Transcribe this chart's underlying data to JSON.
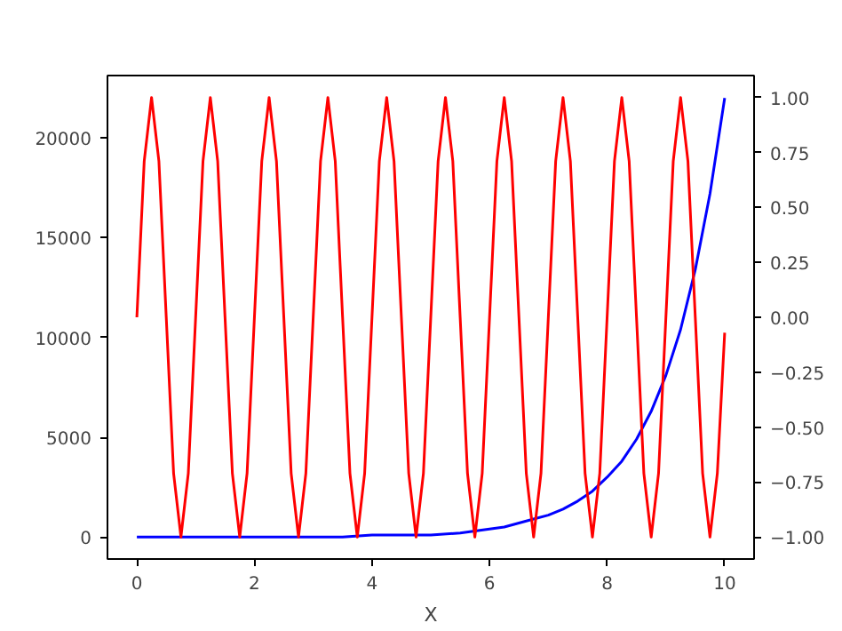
{
  "chart_data": {
    "type": "line",
    "xlabel": "X",
    "xlim": [
      -0.5,
      10.5
    ],
    "xticks": [
      0,
      2,
      4,
      6,
      8,
      10
    ],
    "ylim": [
      -1101,
      23127
    ],
    "yticks": [
      0,
      5000,
      10000,
      15000,
      20000
    ],
    "y2lim": [
      -1.1,
      1.1
    ],
    "y2ticks": [
      {
        "value": -1,
        "label": "−1.00"
      },
      {
        "value": -0.75,
        "label": "−0.75"
      },
      {
        "value": -0.5,
        "label": "−0.50"
      },
      {
        "value": -0.25,
        "label": "−0.25"
      },
      {
        "value": 0,
        "label": "0.00"
      },
      {
        "value": 0.25,
        "label": "0.25"
      },
      {
        "value": 0.5,
        "label": "0.50"
      },
      {
        "value": 0.75,
        "label": "0.75"
      },
      {
        "value": 1,
        "label": "1.00"
      }
    ],
    "grid": false,
    "series": [
      {
        "color": "#0000ff",
        "x": [
          0,
          0.5,
          1,
          1.5,
          2,
          2.5,
          3,
          3.5,
          4,
          4.5,
          5,
          5.5,
          6,
          6.25,
          6.5,
          6.75,
          7,
          7.25,
          7.5,
          7.75,
          8,
          8.25,
          8.5,
          8.75,
          9,
          9.25,
          9.5,
          9.75,
          10
        ],
        "values": [
          0,
          0,
          0,
          0,
          0,
          0,
          0,
          0,
          100,
          100,
          100,
          200,
          400,
          500,
          700,
          900,
          1100,
          1400,
          1800,
          2300,
          3000,
          3800,
          4900,
          6300,
          8100,
          10400,
          13400,
          17200,
          22000
        ]
      },
      {
        "color": "#ff0000",
        "axis": "y2",
        "x": [
          0,
          0.125,
          0.25,
          0.375,
          0.5,
          0.625,
          0.75,
          0.875,
          1,
          1.125,
          1.25,
          1.375,
          1.5,
          1.625,
          1.75,
          1.875,
          2,
          2.125,
          2.25,
          2.375,
          2.5,
          2.625,
          2.75,
          2.875,
          3,
          3.125,
          3.25,
          3.375,
          3.5,
          3.625,
          3.75,
          3.875,
          4,
          4.125,
          4.25,
          4.375,
          4.5,
          4.625,
          4.75,
          4.875,
          5,
          5.125,
          5.25,
          5.375,
          5.5,
          5.625,
          5.75,
          5.875,
          6,
          6.125,
          6.25,
          6.375,
          6.5,
          6.625,
          6.75,
          6.875,
          7,
          7.125,
          7.25,
          7.375,
          7.5,
          7.625,
          7.75,
          7.875,
          8,
          8.125,
          8.25,
          8.375,
          8.5,
          8.625,
          8.75,
          8.875,
          9,
          9.125,
          9.25,
          9.375,
          9.5,
          9.625,
          9.75,
          9.875,
          10
        ],
        "values": [
          0,
          0.71,
          1,
          0.71,
          0,
          -0.71,
          -1,
          -0.71,
          0,
          0.71,
          1,
          0.71,
          0,
          -0.71,
          -1,
          -0.71,
          0,
          0.71,
          1,
          0.71,
          0,
          -0.71,
          -1,
          -0.71,
          0,
          0.71,
          1,
          0.71,
          0,
          -0.71,
          -1,
          -0.71,
          0,
          0.71,
          1,
          0.71,
          0,
          -0.71,
          -1,
          -0.71,
          0,
          0.71,
          1,
          0.71,
          0,
          -0.71,
          -1,
          -0.71,
          0,
          0.71,
          1,
          0.71,
          0,
          -0.71,
          -1,
          -0.71,
          0,
          0.71,
          1,
          0.71,
          0,
          -0.71,
          -1,
          -0.71,
          0,
          0.71,
          1,
          0.71,
          0,
          -0.71,
          -1,
          -0.71,
          0,
          0.71,
          1,
          0.71,
          0,
          -0.71,
          -1,
          -0.71,
          -0.07
        ]
      }
    ]
  }
}
